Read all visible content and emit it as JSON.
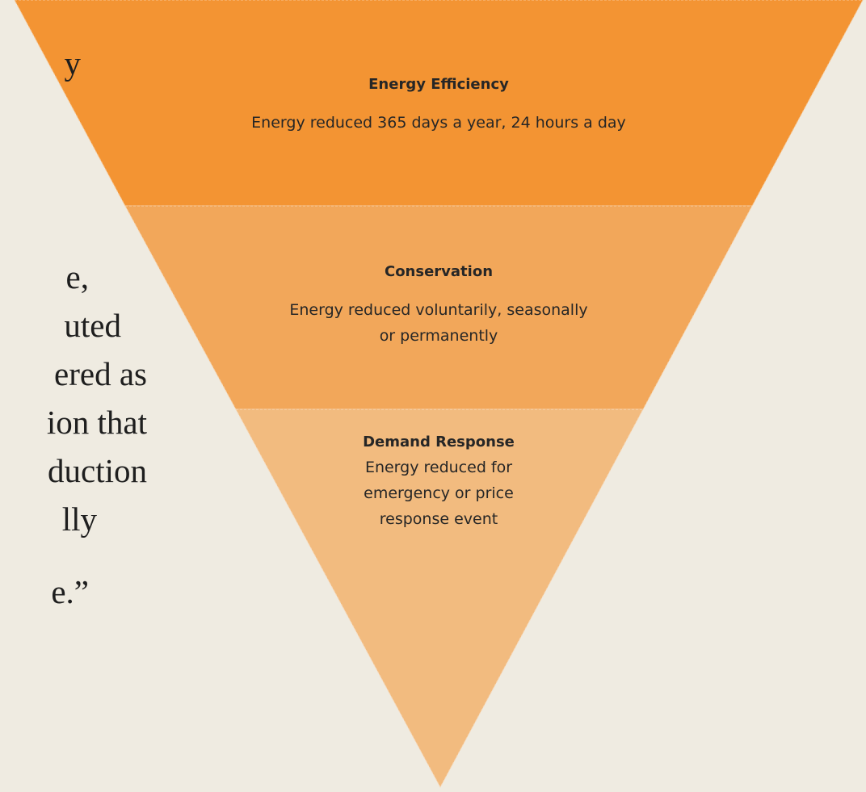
{
  "left_text": {
    "lines": [
      "y",
      "e,",
      "uted",
      "ered as",
      "ion that",
      "duction",
      "lly",
      "e.”"
    ]
  },
  "levels": [
    {
      "title": "Energy Efficiency",
      "description": [
        "Energy reduced 365 days a year, 24 hours a day"
      ]
    },
    {
      "title": "Conservation",
      "description": [
        "Energy reduced voluntarily, seasonally",
        "or permanently"
      ]
    },
    {
      "title": "Demand Response",
      "description": [
        "Energy reduced for",
        "emergency or price",
        "response event"
      ]
    }
  ]
}
